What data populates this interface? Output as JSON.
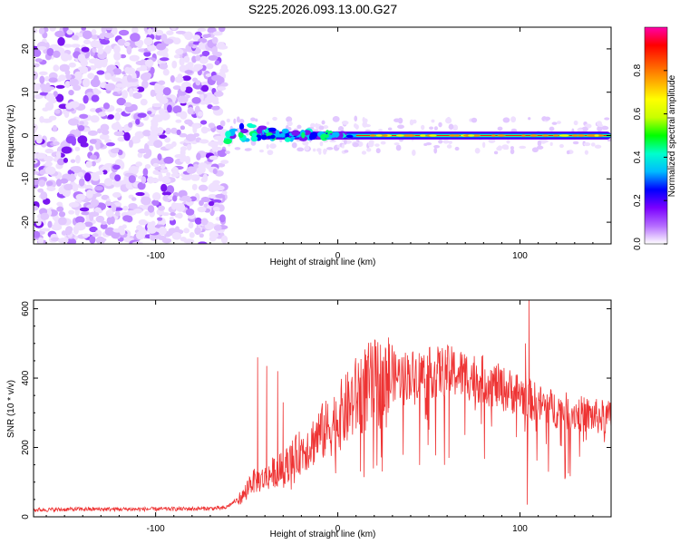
{
  "title": "S225.2026.093.13.00.G27",
  "chart_data": [
    {
      "type": "heatmap",
      "xlabel": "Height of straight line (km)",
      "ylabel": "Frequency (Hz)",
      "xlim": [
        -167,
        150
      ],
      "ylim": [
        -25,
        25
      ],
      "xticks": [
        -100,
        0,
        100
      ],
      "yticks": [
        -20,
        -10,
        0,
        10,
        20
      ],
      "colorbar": {
        "label": "Normalized spectral amplitude",
        "range": [
          0,
          1
        ],
        "ticks": [
          "0.0",
          "0.2",
          "0.4",
          "0.6",
          "0.8"
        ],
        "colors": [
          "#ffffff",
          "#b56cff",
          "#7a00ff",
          "#0000ff",
          "#00bbff",
          "#00ffcc",
          "#00ff00",
          "#c8ff00",
          "#ffff00",
          "#ffaa00",
          "#ff5500",
          "#ff0000",
          "#ff00aa"
        ]
      },
      "noise_region_x": [
        -167,
        -62
      ],
      "signal_line_x": [
        -62,
        150
      ],
      "signal_frequency": 0
    },
    {
      "type": "line",
      "xlabel": "Height of straight line (km)",
      "ylabel": "SNR (10 * v/v)",
      "xlim": [
        -167,
        150
      ],
      "ylim": [
        0,
        625
      ],
      "xticks": [
        -100,
        0,
        100
      ],
      "yticks": [
        0,
        200,
        400,
        600
      ],
      "series": [
        {
          "name": "SNR",
          "color": "#ee3333",
          "x": [
            -167,
            -140,
            -110,
            -80,
            -62,
            -52,
            -48,
            -40,
            -35,
            -30,
            -25,
            -20,
            -15,
            -10,
            -5,
            0,
            5,
            10,
            15,
            20,
            25,
            30,
            40,
            50,
            60,
            70,
            80,
            90,
            100,
            105,
            110,
            120,
            130,
            140,
            150
          ],
          "y": [
            20,
            22,
            22,
            23,
            25,
            60,
            100,
            110,
            130,
            140,
            165,
            190,
            210,
            240,
            255,
            285,
            310,
            345,
            370,
            380,
            390,
            405,
            410,
            415,
            420,
            410,
            395,
            370,
            355,
            340,
            325,
            310,
            300,
            290,
            285
          ],
          "spikes": [
            {
              "x": -44,
              "y": 460
            },
            {
              "x": -39,
              "y": 435
            },
            {
              "x": -33,
              "y": 420
            },
            {
              "x": -30,
              "y": 330
            },
            {
              "x": 60,
              "y": 460
            },
            {
              "x": 61,
              "y": 170
            },
            {
              "x": 105,
              "y": 625
            },
            {
              "x": 103,
              "y": 500
            },
            {
              "x": 104,
              "y": 35
            }
          ]
        }
      ]
    }
  ]
}
